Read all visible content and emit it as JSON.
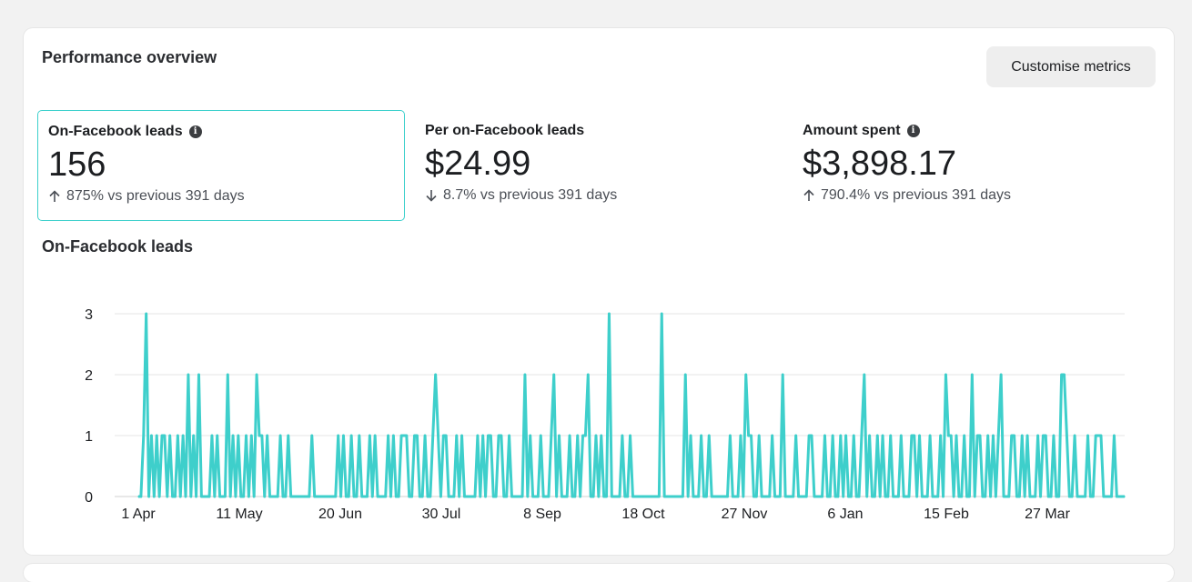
{
  "header": {
    "title": "Performance overview",
    "customise_label": "Customise metrics"
  },
  "metrics": [
    {
      "label": "On-Facebook leads",
      "value": "156",
      "delta": "875% vs previous 391 days",
      "direction": "up",
      "has_info": true
    },
    {
      "label": "Per on-Facebook leads",
      "value": "$24.99",
      "delta": "8.7% vs previous 391 days",
      "direction": "down",
      "has_info": false
    },
    {
      "label": "Amount spent",
      "value": "$3,898.17",
      "delta": "790.4% vs previous 391 days",
      "direction": "up",
      "has_info": true
    }
  ],
  "chart_data": {
    "type": "line",
    "title": "On-Facebook leads",
    "color": "#3ecfcb",
    "ylim": [
      0,
      3
    ],
    "yticks": [
      0,
      1,
      2,
      3
    ],
    "grid": true,
    "xticks": [
      "1 Apr",
      "11 May",
      "20 Jun",
      "30 Jul",
      "8 Sep",
      "18 Oct",
      "27 Nov",
      "6 Jan",
      "15 Feb",
      "27 Mar"
    ],
    "series": [
      {
        "values": [
          0,
          0,
          1,
          3,
          0,
          1,
          0,
          1,
          0,
          1,
          1,
          0,
          1,
          0,
          0,
          1,
          0,
          1,
          0,
          2,
          0,
          1,
          0,
          2,
          0,
          0,
          0,
          0,
          1,
          0,
          1,
          0,
          0,
          0,
          2,
          0,
          1,
          0,
          1,
          0,
          0,
          1,
          0,
          1,
          0,
          2,
          1,
          1,
          0,
          1,
          0,
          0,
          0,
          0,
          1,
          0,
          0,
          1,
          0,
          0,
          0,
          0,
          0,
          0,
          0,
          0,
          1,
          0,
          0,
          0,
          0,
          0,
          0,
          0,
          0,
          0,
          1,
          0,
          1,
          0,
          0,
          1,
          0,
          0,
          1,
          0,
          0,
          0,
          1,
          0,
          1,
          0,
          0,
          0,
          0,
          1,
          0,
          1,
          0,
          0,
          1,
          1,
          1,
          0,
          0,
          1,
          1,
          0,
          0,
          1,
          0,
          0,
          1,
          2,
          1,
          0,
          1,
          1,
          0,
          0,
          0,
          1,
          0,
          1,
          0,
          0,
          0,
          0,
          0,
          1,
          0,
          1,
          0,
          1,
          1,
          0,
          0,
          1,
          1,
          0,
          0,
          1,
          0,
          0,
          0,
          0,
          0,
          2,
          0,
          1,
          0,
          0,
          0,
          1,
          0,
          0,
          0,
          1,
          2,
          0,
          1,
          0,
          0,
          0,
          1,
          0,
          0,
          1,
          0,
          1,
          1,
          2,
          0,
          0,
          1,
          0,
          1,
          0,
          0,
          3,
          0,
          0,
          0,
          0,
          1,
          0,
          0,
          1,
          0,
          0,
          0,
          0,
          0,
          0,
          0,
          0,
          0,
          0,
          0,
          3,
          0,
          0,
          0,
          0,
          0,
          0,
          0,
          0,
          2,
          0,
          1,
          0,
          0,
          0,
          1,
          0,
          0,
          1,
          0,
          0,
          0,
          0,
          0,
          0,
          0,
          1,
          0,
          0,
          0,
          1,
          0,
          2,
          1,
          1,
          0,
          0,
          1,
          0,
          0,
          0,
          0,
          1,
          0,
          0,
          0,
          2,
          0,
          0,
          0,
          0,
          1,
          0,
          0,
          0,
          0,
          1,
          1,
          0,
          0,
          0,
          0,
          1,
          0,
          0,
          1,
          0,
          0,
          1,
          0,
          1,
          0,
          0,
          1,
          0,
          0,
          1,
          2,
          0,
          1,
          0,
          0,
          1,
          0,
          1,
          0,
          0,
          1,
          0,
          0,
          0,
          1,
          0,
          0,
          0,
          1,
          1,
          0,
          1,
          0,
          0,
          0,
          1,
          0,
          0,
          0,
          1,
          0,
          2,
          1,
          1,
          0,
          1,
          0,
          0,
          1,
          0,
          0,
          2,
          0,
          1,
          1,
          0,
          0,
          1,
          0,
          1,
          0,
          1,
          2,
          0,
          0,
          0,
          1,
          1,
          0,
          0,
          1,
          0,
          1,
          0,
          0,
          0,
          1,
          0,
          1,
          1,
          0,
          0,
          1,
          0,
          0,
          2,
          2,
          1,
          0,
          0,
          1,
          0,
          0,
          0,
          0,
          1,
          0,
          0,
          1,
          1,
          1,
          0,
          0,
          0,
          0,
          1,
          0,
          0,
          0,
          0
        ]
      }
    ]
  }
}
